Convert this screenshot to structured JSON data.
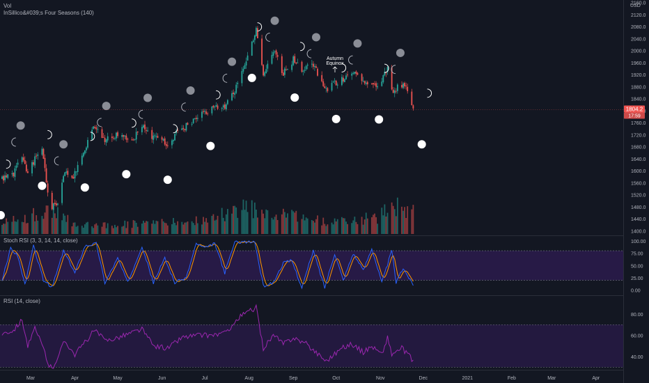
{
  "header": {
    "symbol_label": "Vol",
    "indicator_label": "InSillico&#039;s Four Seasons (140)"
  },
  "price_axis": {
    "currency": "USD",
    "current_price": "1804.2",
    "countdown": "17:59"
  },
  "panes": {
    "stoch_label": "Stoch RSI (3, 3, 14, 14, close)",
    "rsi_label": "RSI (14, close)"
  },
  "annotation": {
    "line1": "Autumn",
    "line2": "Equinox"
  },
  "colors": {
    "background": "#131722",
    "up": "#26a69a",
    "down": "#ef5350",
    "k_line": "#2962ff",
    "d_line": "#ff9800",
    "rsi_line": "#9c27b0",
    "band": "#2a1b4a"
  },
  "chart_data": [
    {
      "type": "candlestick",
      "name": "price",
      "x_ticks": [
        "Mar",
        "Apr",
        "May",
        "Jun",
        "Jul",
        "Aug",
        "Sep",
        "Oct",
        "Nov",
        "Dec",
        "2021",
        "Feb",
        "Mar",
        "Apr"
      ],
      "y_ticks": [
        2160,
        2120,
        2080,
        2040,
        2000,
        1960,
        1920,
        1880,
        1840,
        1800,
        1760,
        1720,
        1680,
        1640,
        1600,
        1560,
        1520,
        1480,
        1440,
        1400
      ],
      "ylim": [
        1400,
        2160
      ],
      "close_anchors": [
        [
          "2020-02-10",
          1572
        ],
        [
          "2020-02-18",
          1592
        ],
        [
          "2020-02-24",
          1650
        ],
        [
          "2020-02-28",
          1585
        ],
        [
          "2020-03-04",
          1640
        ],
        [
          "2020-03-09",
          1670
        ],
        [
          "2020-03-13",
          1530
        ],
        [
          "2020-03-16",
          1480
        ],
        [
          "2020-03-20",
          1490
        ],
        [
          "2020-03-25",
          1600
        ],
        [
          "2020-03-31",
          1580
        ],
        [
          "2020-04-07",
          1650
        ],
        [
          "2020-04-14",
          1750
        ],
        [
          "2020-04-21",
          1700
        ],
        [
          "2020-04-28",
          1720
        ],
        [
          "2020-05-05",
          1710
        ],
        [
          "2020-05-12",
          1705
        ],
        [
          "2020-05-18",
          1755
        ],
        [
          "2020-05-26",
          1710
        ],
        [
          "2020-06-05",
          1690
        ],
        [
          "2020-06-12",
          1730
        ],
        [
          "2020-06-22",
          1760
        ],
        [
          "2020-06-30",
          1790
        ],
        [
          "2020-07-08",
          1810
        ],
        [
          "2020-07-15",
          1810
        ],
        [
          "2020-07-22",
          1870
        ],
        [
          "2020-07-29",
          1960
        ],
        [
          "2020-08-06",
          2070
        ],
        [
          "2020-08-11",
          1910
        ],
        [
          "2020-08-18",
          2000
        ],
        [
          "2020-08-25",
          1925
        ],
        [
          "2020-09-01",
          1970
        ],
        [
          "2020-09-07",
          1930
        ],
        [
          "2020-09-14",
          1960
        ],
        [
          "2020-09-21",
          1900
        ],
        [
          "2020-09-24",
          1870
        ],
        [
          "2020-10-05",
          1905
        ],
        [
          "2020-10-12",
          1925
        ],
        [
          "2020-10-19",
          1905
        ],
        [
          "2020-10-26",
          1880
        ],
        [
          "2020-11-02",
          1895
        ],
        [
          "2020-11-06",
          1950
        ],
        [
          "2020-11-09",
          1865
        ],
        [
          "2020-11-16",
          1885
        ],
        [
          "2020-11-20",
          1870
        ],
        [
          "2020-11-24",
          1808
        ]
      ],
      "volume_anchors": [
        [
          "2020-02-10",
          0.3
        ],
        [
          "2020-03-01",
          0.45
        ],
        [
          "2020-03-15",
          0.65
        ],
        [
          "2020-04-01",
          0.25
        ],
        [
          "2020-05-01",
          0.25
        ],
        [
          "2020-06-01",
          0.28
        ],
        [
          "2020-07-01",
          0.35
        ],
        [
          "2020-08-01",
          0.7
        ],
        [
          "2020-08-15",
          0.55
        ],
        [
          "2020-09-01",
          0.45
        ],
        [
          "2020-10-01",
          0.3
        ],
        [
          "2020-11-01",
          0.45
        ],
        [
          "2020-11-09",
          0.75
        ],
        [
          "2020-11-24",
          0.55
        ]
      ],
      "full_moons": [
        "2020-02-09",
        "2020-03-09",
        "2020-04-08",
        "2020-05-07",
        "2020-06-05",
        "2020-07-05",
        "2020-08-03",
        "2020-09-02",
        "2020-10-01",
        "2020-10-31",
        "2020-11-30"
      ],
      "new_moons": [
        "2020-02-23",
        "2020-03-24",
        "2020-04-23",
        "2020-05-22",
        "2020-06-21",
        "2020-07-20",
        "2020-08-19",
        "2020-09-17",
        "2020-10-16",
        "2020-11-15"
      ]
    },
    {
      "type": "line",
      "name": "Stoch RSI",
      "y_ticks": [
        100.0,
        75.0,
        50.0,
        25.0,
        0.0
      ],
      "band": [
        20,
        80
      ],
      "k_anchors": [
        [
          "2020-02-10",
          20
        ],
        [
          "2020-02-16",
          85
        ],
        [
          "2020-02-21",
          70
        ],
        [
          "2020-02-26",
          10
        ],
        [
          "2020-03-03",
          90
        ],
        [
          "2020-03-10",
          20
        ],
        [
          "2020-03-16",
          5
        ],
        [
          "2020-03-24",
          80
        ],
        [
          "2020-04-01",
          35
        ],
        [
          "2020-04-08",
          90
        ],
        [
          "2020-04-16",
          95
        ],
        [
          "2020-04-22",
          15
        ],
        [
          "2020-05-01",
          65
        ],
        [
          "2020-05-08",
          15
        ],
        [
          "2020-05-18",
          90
        ],
        [
          "2020-05-26",
          15
        ],
        [
          "2020-06-03",
          65
        ],
        [
          "2020-06-10",
          15
        ],
        [
          "2020-06-18",
          25
        ],
        [
          "2020-06-25",
          95
        ],
        [
          "2020-07-01",
          85
        ],
        [
          "2020-07-08",
          95
        ],
        [
          "2020-07-15",
          35
        ],
        [
          "2020-07-22",
          98
        ],
        [
          "2020-08-05",
          98
        ],
        [
          "2020-08-11",
          8
        ],
        [
          "2020-08-18",
          15
        ],
        [
          "2020-08-25",
          55
        ],
        [
          "2020-08-31",
          60
        ],
        [
          "2020-09-07",
          5
        ],
        [
          "2020-09-15",
          80
        ],
        [
          "2020-09-23",
          5
        ],
        [
          "2020-09-30",
          75
        ],
        [
          "2020-10-06",
          20
        ],
        [
          "2020-10-13",
          75
        ],
        [
          "2020-10-20",
          40
        ],
        [
          "2020-10-26",
          85
        ],
        [
          "2020-11-02",
          15
        ],
        [
          "2020-11-09",
          80
        ],
        [
          "2020-11-12",
          15
        ],
        [
          "2020-11-17",
          45
        ],
        [
          "2020-11-24",
          10
        ]
      ]
    },
    {
      "type": "line",
      "name": "RSI",
      "y_ticks": [
        80.0,
        60.0,
        40.0
      ],
      "band": [
        30,
        70
      ],
      "rsi_anchors": [
        [
          "2020-02-10",
          62
        ],
        [
          "2020-02-18",
          65
        ],
        [
          "2020-02-24",
          75
        ],
        [
          "2020-02-28",
          50
        ],
        [
          "2020-03-04",
          66
        ],
        [
          "2020-03-10",
          48
        ],
        [
          "2020-03-13",
          34
        ],
        [
          "2020-03-16",
          28
        ],
        [
          "2020-03-25",
          55
        ],
        [
          "2020-04-01",
          42
        ],
        [
          "2020-04-15",
          65
        ],
        [
          "2020-04-22",
          55
        ],
        [
          "2020-05-01",
          58
        ],
        [
          "2020-05-18",
          66
        ],
        [
          "2020-05-26",
          50
        ],
        [
          "2020-06-05",
          48
        ],
        [
          "2020-06-15",
          58
        ],
        [
          "2020-06-25",
          60
        ],
        [
          "2020-07-05",
          60
        ],
        [
          "2020-07-15",
          62
        ],
        [
          "2020-07-27",
          79
        ],
        [
          "2020-08-06",
          86
        ],
        [
          "2020-08-11",
          48
        ],
        [
          "2020-08-18",
          60
        ],
        [
          "2020-08-25",
          52
        ],
        [
          "2020-09-01",
          58
        ],
        [
          "2020-09-10",
          52
        ],
        [
          "2020-09-24",
          36
        ],
        [
          "2020-10-05",
          48
        ],
        [
          "2020-10-12",
          52
        ],
        [
          "2020-10-20",
          44
        ],
        [
          "2020-10-26",
          50
        ],
        [
          "2020-11-02",
          42
        ],
        [
          "2020-11-06",
          58
        ],
        [
          "2020-11-09",
          42
        ],
        [
          "2020-11-16",
          48
        ],
        [
          "2020-11-24",
          36
        ]
      ]
    }
  ]
}
